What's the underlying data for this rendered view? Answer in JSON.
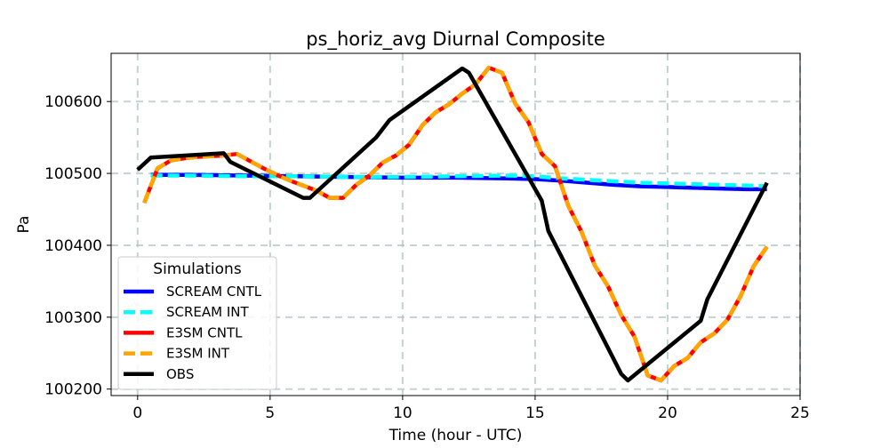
{
  "chart_data": {
    "type": "line",
    "title": "ps_horiz_avg Diurnal Composite",
    "xlabel": "Time (hour - UTC)",
    "ylabel": "Pa",
    "xlim": [
      -1.0,
      25.0
    ],
    "ylim": [
      100191,
      100667
    ],
    "xticks": [
      0,
      5,
      10,
      15,
      20,
      25
    ],
    "yticks": [
      100200,
      100300,
      100400,
      100500,
      100600
    ],
    "grid": true,
    "legend": {
      "title": "Simulations",
      "position": "lower-left"
    },
    "series": [
      {
        "name": "SCREAM CNTL",
        "color": "#0000ff",
        "style": "solid",
        "x": [
          0.5,
          2,
          4,
          6,
          8,
          10,
          12,
          14,
          15,
          16,
          17,
          18,
          19,
          20,
          21,
          22,
          23,
          23.75
        ],
        "y": [
          100498,
          100498,
          100497,
          100496,
          100495,
          100494,
          100494,
          100493,
          100492,
          100490,
          100487,
          100484,
          100482,
          100481,
          100480,
          100479,
          100478,
          100478
        ]
      },
      {
        "name": "SCREAM INT",
        "color": "#00ffff",
        "style": "dashed",
        "x": [
          0.5,
          2,
          4,
          6,
          8,
          10,
          12,
          14,
          15,
          16,
          17,
          18,
          19,
          20,
          21,
          22,
          23,
          23.75
        ],
        "y": [
          100497,
          100497,
          100496,
          100496,
          100495,
          100495,
          100496,
          100497,
          100496,
          100493,
          100491,
          100489,
          100487,
          100486,
          100485,
          100484,
          100483,
          100482
        ]
      },
      {
        "name": "E3SM CNTL",
        "color": "#ff0000",
        "style": "solid",
        "x": [
          0.25,
          0.75,
          1.25,
          1.75,
          2.25,
          2.75,
          3.25,
          3.75,
          4.25,
          4.75,
          5.25,
          5.75,
          6.25,
          6.75,
          7.25,
          7.75,
          8.25,
          8.75,
          9.25,
          9.75,
          10.25,
          10.75,
          11.25,
          11.75,
          12.25,
          12.75,
          13.25,
          13.75,
          14.25,
          14.75,
          15.25,
          15.75,
          16.25,
          16.75,
          17.25,
          17.75,
          18.25,
          18.75,
          19.25,
          19.75,
          20.25,
          20.75,
          21.25,
          21.75,
          22.25,
          22.75,
          23.25,
          23.75
        ],
        "y": [
          100459,
          100507,
          100518,
          100521,
          100523,
          100524,
          100525,
          100527,
          100517,
          100507,
          100498,
          100490,
          100483,
          100476,
          100466,
          100466,
          100484,
          100497,
          100515,
          100525,
          100540,
          100567,
          100585,
          100596,
          100611,
          100624,
          100647,
          100640,
          100597,
          100571,
          100527,
          100510,
          100455,
          100419,
          100372,
          100343,
          100303,
          100273,
          100219,
          100212,
          100232,
          100243,
          100265,
          100277,
          100296,
          100329,
          100371,
          100398
        ]
      },
      {
        "name": "E3SM INT",
        "color": "#ffa500",
        "style": "dashed",
        "x": [
          0.25,
          0.75,
          1.25,
          1.75,
          2.25,
          2.75,
          3.25,
          3.75,
          4.25,
          4.75,
          5.25,
          5.75,
          6.25,
          6.75,
          7.25,
          7.75,
          8.25,
          8.75,
          9.25,
          9.75,
          10.25,
          10.75,
          11.25,
          11.75,
          12.25,
          12.75,
          13.25,
          13.75,
          14.25,
          14.75,
          15.25,
          15.75,
          16.25,
          16.75,
          17.25,
          17.75,
          18.25,
          18.75,
          19.25,
          19.75,
          20.25,
          20.75,
          21.25,
          21.75,
          22.25,
          22.75,
          23.25,
          23.75
        ],
        "y": [
          100459,
          100507,
          100518,
          100521,
          100523,
          100524,
          100525,
          100527,
          100517,
          100507,
          100498,
          100490,
          100483,
          100476,
          100466,
          100466,
          100484,
          100497,
          100515,
          100525,
          100540,
          100567,
          100585,
          100596,
          100611,
          100624,
          100647,
          100640,
          100597,
          100571,
          100527,
          100510,
          100455,
          100419,
          100372,
          100343,
          100303,
          100273,
          100219,
          100212,
          100232,
          100243,
          100265,
          100277,
          100296,
          100329,
          100371,
          100398
        ]
      },
      {
        "name": "OBS",
        "color": "#000000",
        "style": "solid",
        "x": [
          0.0,
          0.5,
          3.25,
          3.5,
          6.25,
          6.5,
          9.0,
          9.5,
          12.25,
          12.5,
          15.25,
          15.5,
          18.25,
          18.5,
          21.25,
          21.5,
          23.75
        ],
        "y": [
          100505,
          100522,
          100528,
          100516,
          100466,
          100466,
          100550,
          100574,
          100646,
          100640,
          100462,
          100420,
          100221,
          100212,
          100295,
          100325,
          100487
        ]
      }
    ]
  }
}
